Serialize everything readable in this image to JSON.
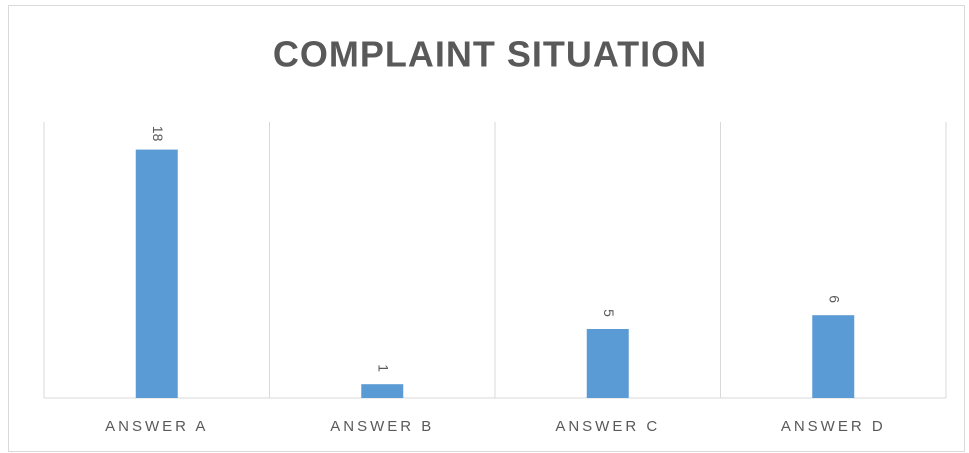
{
  "chart_data": {
    "type": "bar",
    "title": "COMPLAINT SITUATION",
    "categories": [
      "ANSWER A",
      "ANSWER B",
      "ANSWER C",
      "ANSWER D"
    ],
    "values": [
      18,
      1,
      5,
      6
    ],
    "color": "#5b9bd5",
    "ylim": [
      0,
      20
    ]
  }
}
